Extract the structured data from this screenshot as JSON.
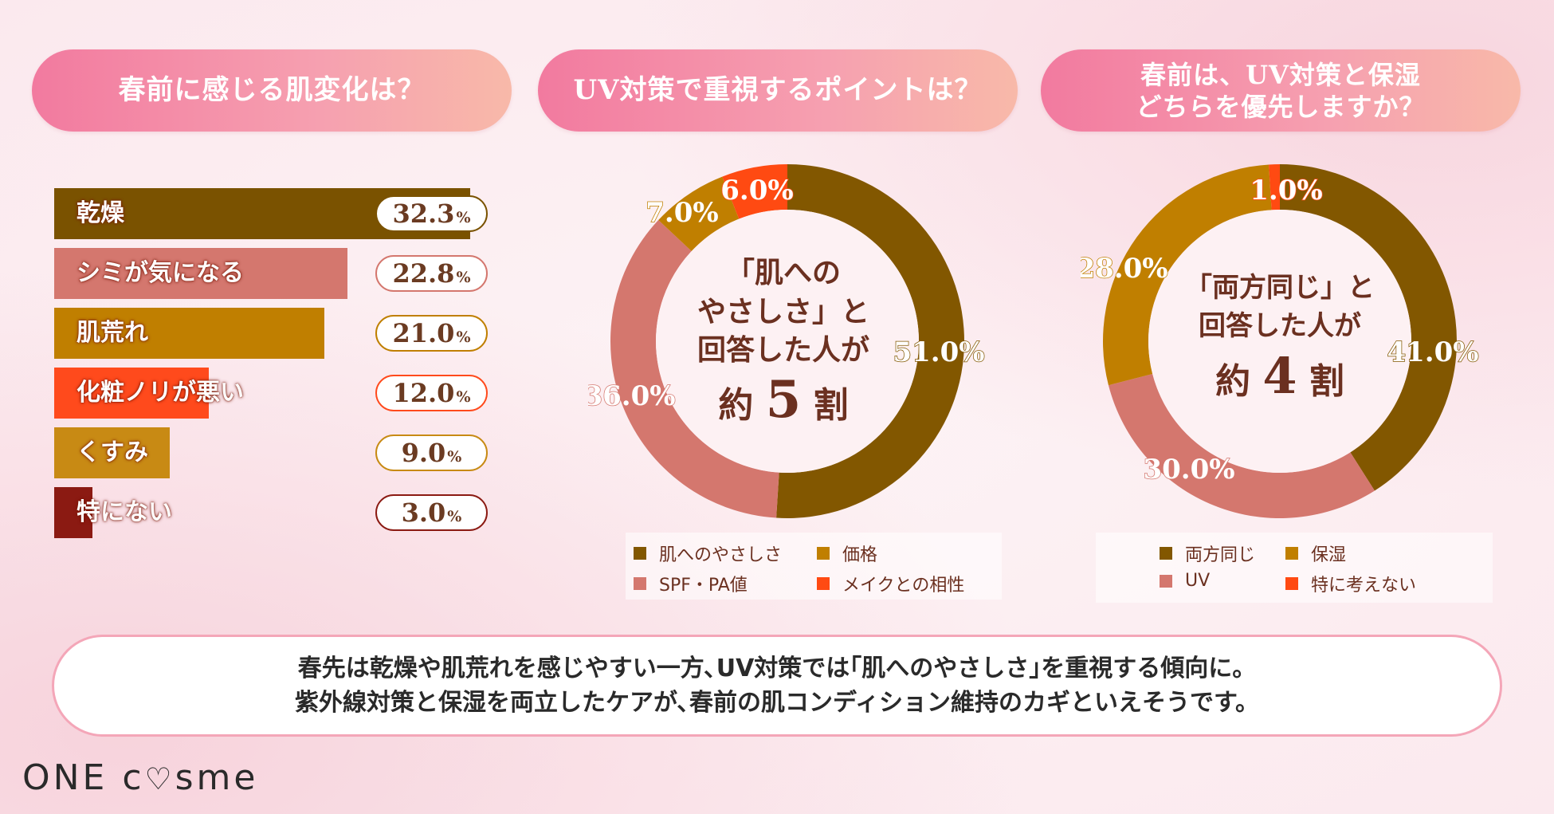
{
  "headers": {
    "q1": "春前に感じる肌変化は？",
    "q2": "UV対策で重視するポイントは？",
    "q3_line1": "春前は、UV対策と保湿",
    "q3_line2": "どちらを優先しますか？"
  },
  "donut1_center": {
    "line1": "「肌への",
    "line2": "やさしさ」と",
    "line3": "回答した人が",
    "line4_pre": "約",
    "line4_num": "5",
    "line4_post": "割"
  },
  "donut2_center": {
    "line1": "「両方同じ」と",
    "line2": "回答した人が",
    "line3_pre": "約",
    "line3_num": "4",
    "line3_post": "割"
  },
  "summary": {
    "line1": "春先は乾燥や肌荒れを感じやすい一方､UV対策では｢肌へのやさしさ｣を重視する傾向に。",
    "line2": "紫外線対策と保湿を両立したケアが､春前の肌コンディション維持のカギといえそうです。"
  },
  "logo": "ONE cosme",
  "chart_data": [
    {
      "type": "bar",
      "title": "春前に感じる肌変化は？",
      "categories": [
        "乾燥",
        "シミが気になる",
        "肌荒れ",
        "化粧ノリが悪い",
        "くすみ",
        "特にない"
      ],
      "values": [
        32.3,
        22.8,
        21.0,
        12.0,
        9.0,
        3.0
      ],
      "value_labels": [
        "32.3",
        "22.8",
        "21.0",
        "12.0",
        "9.0",
        "3.0"
      ],
      "unit": "%",
      "colors": [
        "#7a5200",
        "#d4776e",
        "#c07f00",
        "#ff4a1c",
        "#c88a14",
        "#8b1a12"
      ],
      "xlim": [
        0,
        32.3
      ]
    },
    {
      "type": "pie",
      "title": "UV対策で重視するポイントは？",
      "categories": [
        "肌へのやさしさ",
        "SPF・PA値",
        "価格",
        "メイクとの相性"
      ],
      "values": [
        51.0,
        36.0,
        7.0,
        6.0
      ],
      "value_labels": [
        "51.0",
        "36.0",
        "7.0",
        "6.0"
      ],
      "unit": "%",
      "colors": [
        "#825700",
        "#d4776e",
        "#c07f00",
        "#ff4a12"
      ]
    },
    {
      "type": "pie",
      "title": "春前は、UV対策と保湿どちらを優先しますか？",
      "categories": [
        "両方同じ",
        "UV",
        "保湿",
        "特に考えない"
      ],
      "values": [
        41.0,
        30.0,
        28.0,
        1.0
      ],
      "value_labels": [
        "41.0",
        "30.0",
        "28.0",
        "1.0"
      ],
      "unit": "%",
      "colors": [
        "#825700",
        "#d4776e",
        "#c07f00",
        "#ff4a12"
      ]
    }
  ]
}
